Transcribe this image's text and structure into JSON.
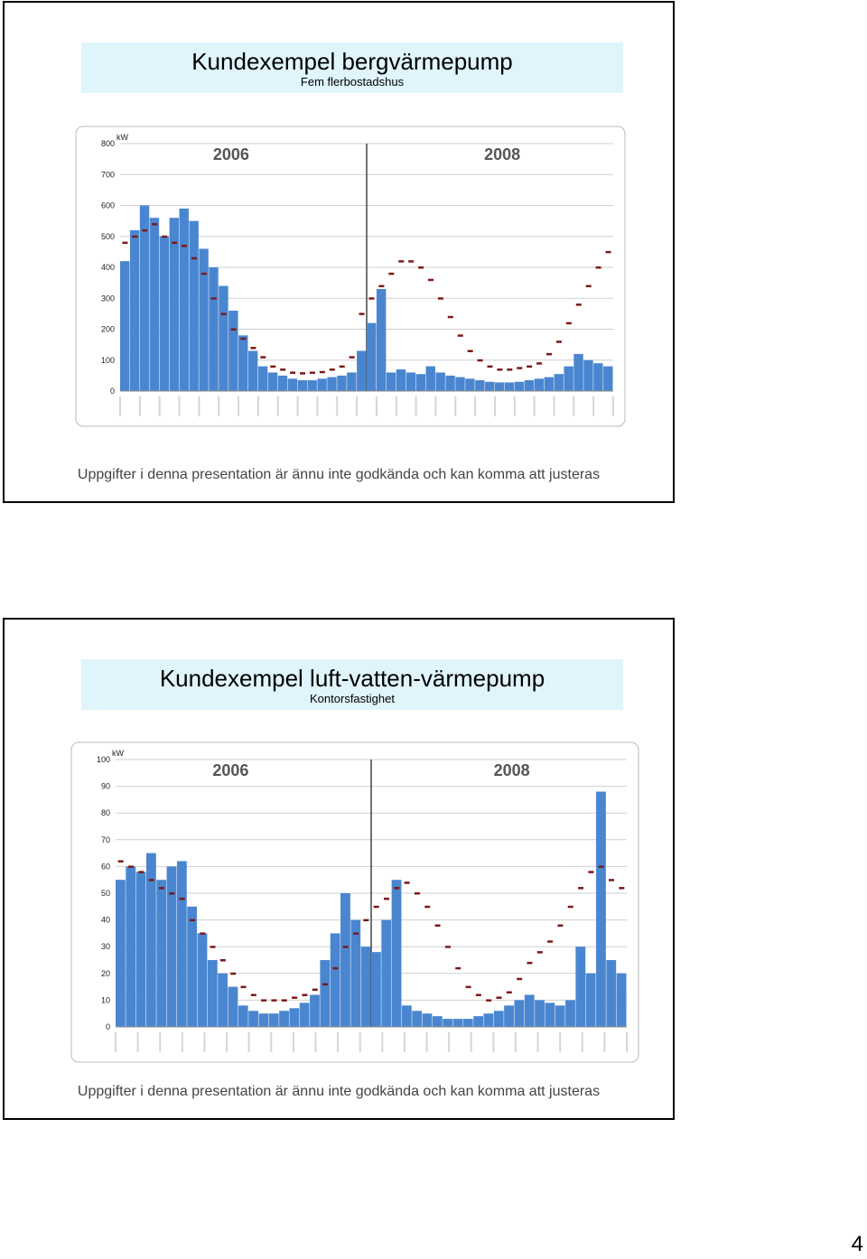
{
  "page_number": "4",
  "slides": [
    {
      "title": "Kundexempel bergvärmepump",
      "subtitle": "Fem flerbostadshus",
      "footer": "Uppgifter i denna presentation är ännu inte godkända och kan komma att justeras"
    },
    {
      "title": "Kundexempel luft-vatten-värmepump",
      "subtitle": "Kontorsfastighet",
      "footer": "Uppgifter i denna presentation är ännu inte godkända och kan komma att justeras"
    }
  ],
  "chart_data": [
    {
      "type": "bar",
      "ylabel": "kW",
      "ylim": [
        0,
        800
      ],
      "yticks": [
        0,
        100,
        200,
        300,
        400,
        500,
        600,
        700,
        800
      ],
      "period_labels": [
        "2006",
        "2008"
      ],
      "grid": true,
      "bar_color": "#4a86d0",
      "marker_color": "#7a1a1a",
      "x_tick_count": 26,
      "series": [
        {
          "name": "",
          "values": [
            420,
            520,
            600,
            560,
            500,
            560,
            590,
            550,
            460,
            400,
            340,
            260,
            180,
            130,
            80,
            60,
            50,
            40,
            35,
            35,
            40,
            45,
            50,
            60,
            130,
            220,
            330,
            60,
            70,
            60,
            55,
            80,
            60,
            50,
            45,
            40,
            35,
            30,
            28,
            28,
            30,
            35,
            40,
            45,
            55,
            80,
            120,
            100,
            90,
            80
          ]
        },
        {
          "name": "",
          "values": [
            480,
            500,
            520,
            540,
            500,
            480,
            470,
            430,
            380,
            300,
            250,
            200,
            170,
            140,
            110,
            80,
            70,
            60,
            58,
            60,
            62,
            70,
            80,
            110,
            250,
            300,
            340,
            380,
            420,
            420,
            400,
            360,
            300,
            240,
            180,
            130,
            100,
            80,
            70,
            70,
            75,
            80,
            90,
            120,
            160,
            220,
            280,
            340,
            400,
            450
          ]
        }
      ]
    },
    {
      "type": "bar",
      "ylabel": "kW",
      "ylim": [
        0,
        100
      ],
      "yticks": [
        0,
        10,
        20,
        30,
        40,
        50,
        60,
        70,
        80,
        90,
        100
      ],
      "period_labels": [
        "2006",
        "2008"
      ],
      "grid": true,
      "bar_color": "#4a86d0",
      "marker_color": "#7a1a1a",
      "x_tick_count": 24,
      "series": [
        {
          "name": "",
          "values": [
            55,
            60,
            58,
            65,
            55,
            60,
            62,
            45,
            35,
            25,
            20,
            15,
            8,
            6,
            5,
            5,
            6,
            7,
            9,
            12,
            25,
            35,
            50,
            40,
            30,
            28,
            40,
            55,
            8,
            6,
            5,
            4,
            3,
            3,
            3,
            4,
            5,
            6,
            8,
            10,
            12,
            10,
            9,
            8,
            10,
            30,
            20,
            88,
            25,
            20
          ]
        },
        {
          "name": "",
          "values": [
            62,
            60,
            58,
            55,
            52,
            50,
            48,
            40,
            35,
            30,
            25,
            20,
            15,
            12,
            10,
            10,
            10,
            11,
            12,
            14,
            16,
            22,
            30,
            35,
            40,
            45,
            48,
            52,
            54,
            50,
            45,
            38,
            30,
            22,
            15,
            12,
            10,
            11,
            13,
            18,
            24,
            28,
            32,
            38,
            45,
            52,
            58,
            60,
            55,
            52
          ]
        }
      ]
    }
  ]
}
